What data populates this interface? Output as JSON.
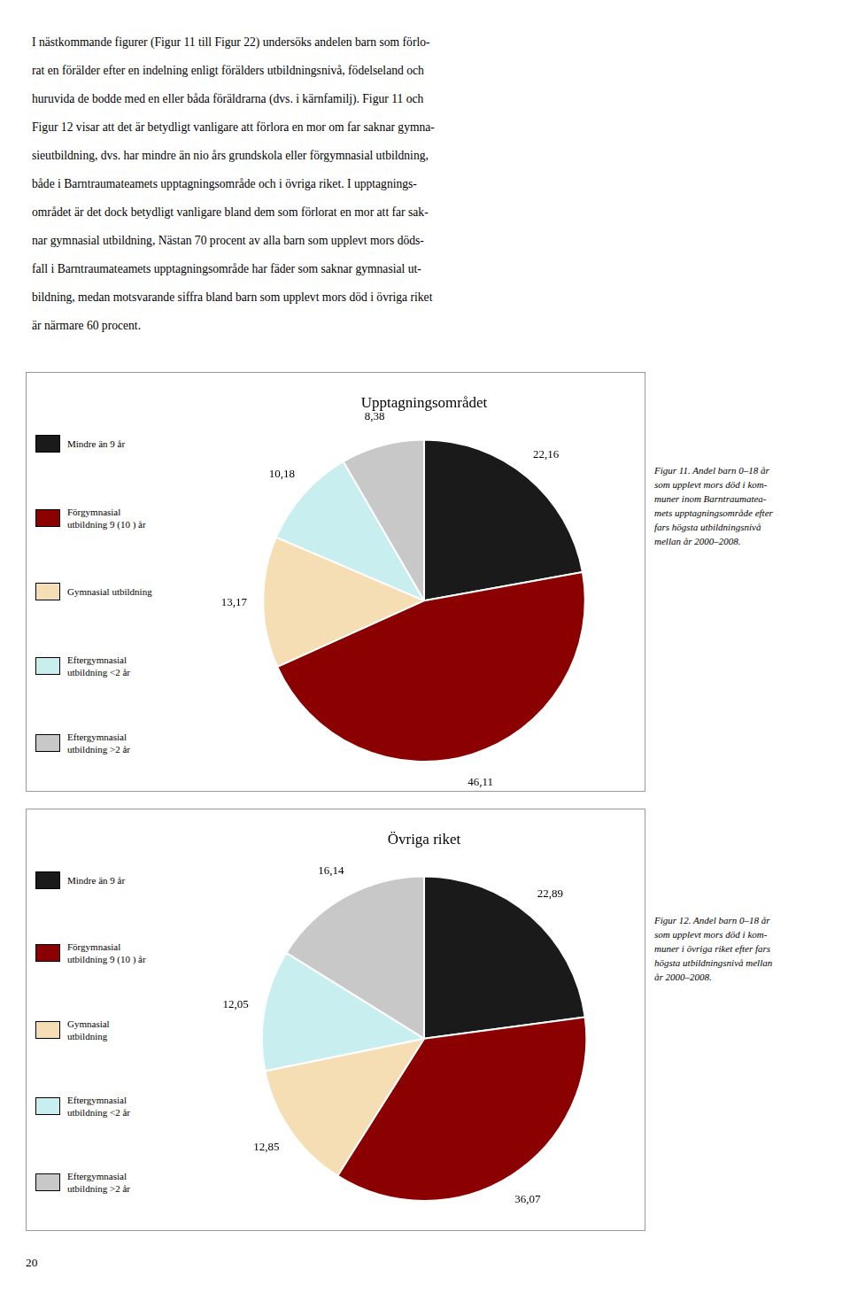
{
  "chart_data": [
    {
      "type": "pie",
      "title": "Upptagningsområdet",
      "categories": [
        "Mindre än 9 år",
        "Förgymnasial\nutbildning 9 (10 ) år",
        "Gymnasial utbildning",
        "Eftergymnasial\nutbildning <2 år",
        "Eftergymnasial\nutbildning >2 år"
      ],
      "values": [
        22.16,
        46.11,
        13.17,
        10.18,
        8.38
      ],
      "value_labels": [
        "22,16",
        "46,11",
        "13,17",
        "10,18",
        "8,38"
      ],
      "colors": [
        "#1a1a1a",
        "#8B0000",
        "#F5DEB3",
        "#C8EEF0",
        "#C8C8C8"
      ],
      "data_labels": true,
      "legend": "left",
      "annotations": [
        "Figur 11. Andel barn 0–18 år",
        "som upplevt mors död i kom-",
        "muner inom Barntraumatea-",
        "mets upptagningsområde efter",
        "fars högsta utbildningsnivå",
        "mellan år 2000–2008."
      ]
    },
    {
      "type": "pie",
      "title": "Övriga riket",
      "categories": [
        "Mindre än 9 år",
        "Förgymnasial\nutbildning 9 (10 ) år",
        "Gymnasial\nutbildning",
        "Eftergymnasial\nutbildning <2 år",
        "Eftergymnasial\nutbildning >2 år"
      ],
      "values": [
        22.89,
        36.07,
        12.85,
        12.05,
        16.14
      ],
      "value_labels": [
        "22,89",
        "36,07",
        "12,85",
        "12,05",
        "16,14"
      ],
      "colors": [
        "#1a1a1a",
        "#8B0000",
        "#F5DEB3",
        "#C8EEF0",
        "#C8C8C8"
      ],
      "data_labels": true,
      "legend": "left",
      "annotations": [
        "Figur 12. Andel barn 0–18 år",
        "som upplevt mors död i kom-",
        "muner i övriga riket efter fars",
        "högsta utbildningsnivå mellan",
        "år 2000–2008."
      ]
    }
  ],
  "text_lines": [
    "I nästkommande figurer (Figur 11 till Figur 22) undersöks andelen barn som förlo-",
    "rat en förälder efter en indelning enligt förälders utbildningsnivå, födelseland och",
    "huruvida de bodde med en eller båda föräldrarna (dvs. i kärnfamilj). Figur 11 och",
    "Figur 12 visar att det är betydligt vanligare att förlora en mor om far saknar gymna-",
    "sieutbildning, dvs. har mindre än nio års grundskola eller förgymnasial utbildning,",
    "både i Barntraumateamets upptagningsområde och i övriga riket. I upptagnings-",
    "området är det dock betydligt vanligare bland dem som förlorat en mor att far sak-",
    "nar gymnasial utbildning, Nästan 70 procent av alla barn som upplevt mors döds-",
    "fall i Barntraumateamets upptagningsområde har fäder som saknar gymnasial ut-",
    "bildning, medan motsvarande siffra bland barn som upplevt mors död i övriga riket",
    "är närmare 60 procent."
  ],
  "page_number": "20"
}
